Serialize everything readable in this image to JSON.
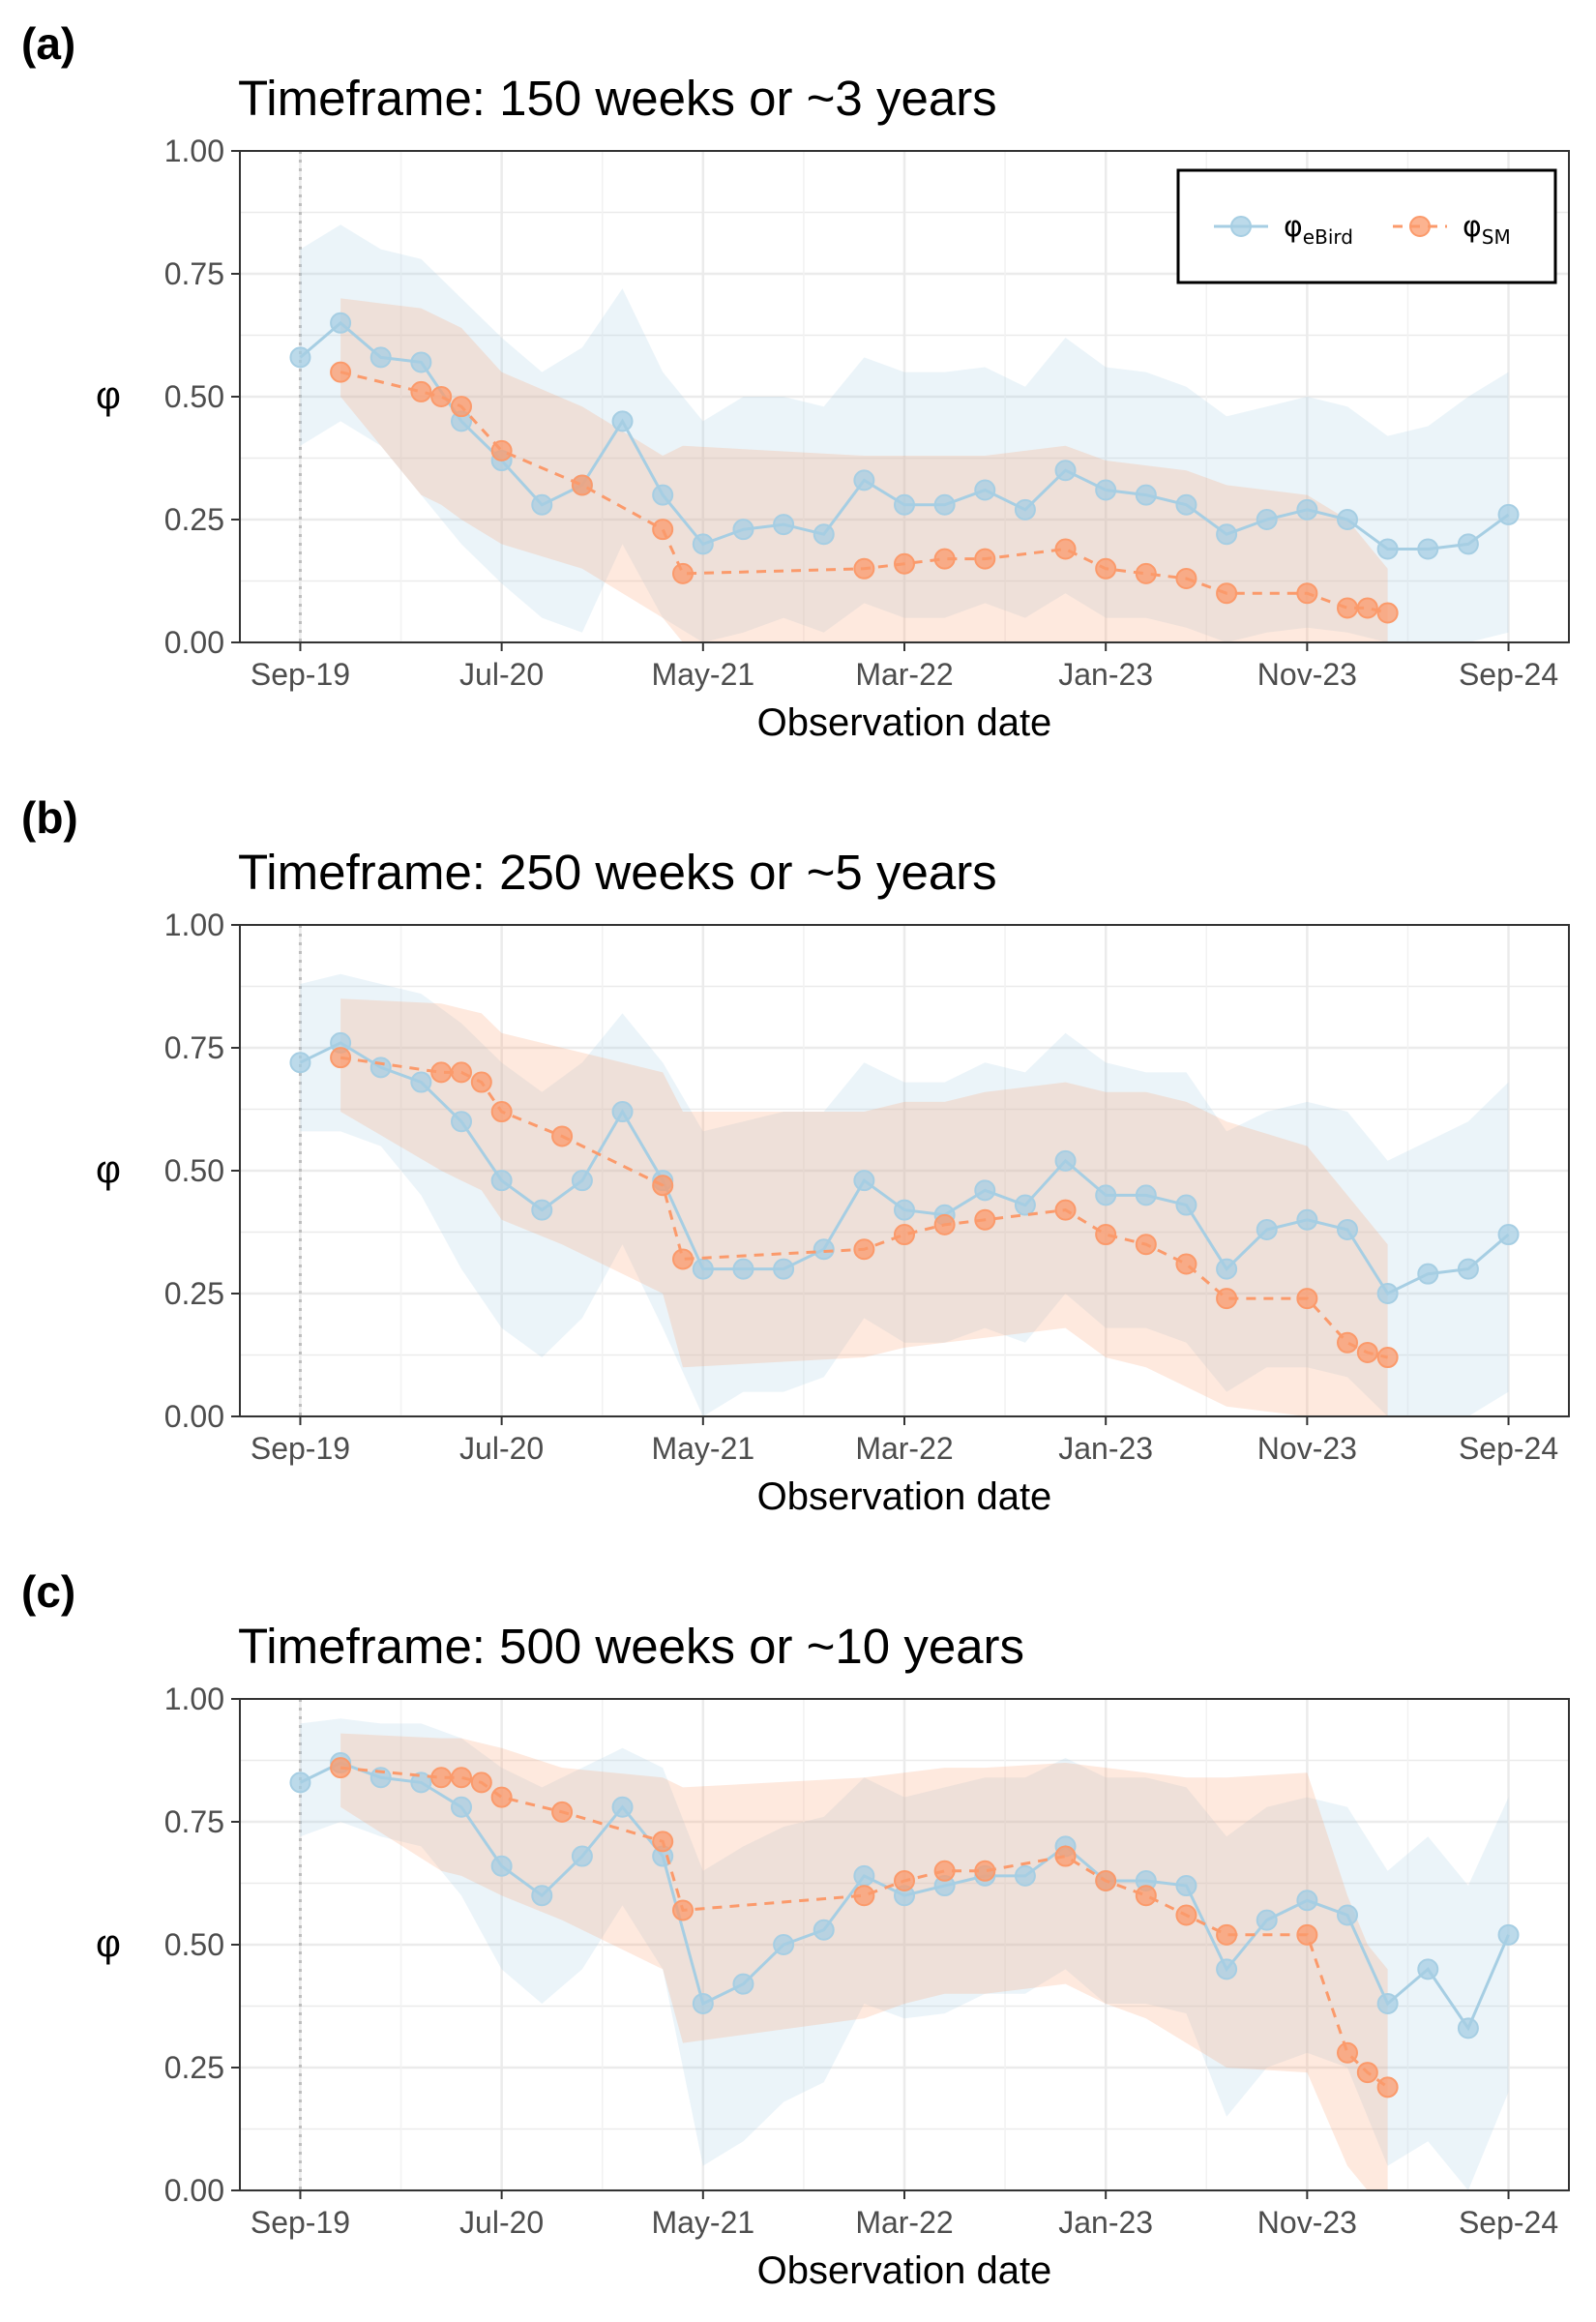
{
  "panels": [
    {
      "letter": "(a)",
      "title": "Timeframe: 150 weeks or ~3 years"
    },
    {
      "letter": "(b)",
      "title": "Timeframe: 250 weeks or ~5 years"
    },
    {
      "letter": "(c)",
      "title": "Timeframe: 500 weeks or ~10 years"
    }
  ],
  "legend": {
    "items": [
      {
        "symbol": "φ",
        "sub": "eBird",
        "color": "#a6cee3"
      },
      {
        "symbol": "φ",
        "sub": "SM",
        "color": "#fb9a6b"
      }
    ]
  },
  "chart_data": [
    {
      "type": "line",
      "title": "Timeframe: 150 weeks or ~3 years",
      "xlabel": "Observation date",
      "ylabel": "φ",
      "x_ticks": [
        "Sep-19",
        "Jul-20",
        "May-21",
        "Mar-22",
        "Jan-23",
        "Nov-23",
        "Sep-24"
      ],
      "ylim": [
        0,
        1
      ],
      "y_ticks": [
        "0.00",
        "0.25",
        "0.50",
        "0.75",
        "1.00"
      ],
      "grid": true,
      "legend_position": "top-right",
      "series": [
        {
          "name": "φeBird",
          "color": "#a6cee3",
          "x": [
            "2019-09",
            "2019-11",
            "2020-01",
            "2020-03",
            "2020-05",
            "2020-07",
            "2020-09",
            "2020-11",
            "2021-01",
            "2021-03",
            "2021-05",
            "2021-07",
            "2021-09",
            "2021-11",
            "2022-01",
            "2022-03",
            "2022-05",
            "2022-07",
            "2022-09",
            "2022-11",
            "2023-01",
            "2023-03",
            "2023-05",
            "2023-07",
            "2023-09",
            "2023-11",
            "2024-01",
            "2024-03",
            "2024-05",
            "2024-07",
            "2024-09"
          ],
          "values": [
            0.58,
            0.65,
            0.58,
            0.57,
            0.45,
            0.37,
            0.28,
            0.32,
            0.45,
            0.3,
            0.2,
            0.23,
            0.24,
            0.22,
            0.33,
            0.28,
            0.28,
            0.31,
            0.27,
            0.35,
            0.31,
            0.3,
            0.28,
            0.22,
            0.25,
            0.27,
            0.25,
            0.19,
            0.19,
            0.2,
            0.26
          ],
          "band_lower": [
            0.4,
            0.45,
            0.4,
            0.3,
            0.2,
            0.12,
            0.05,
            0.02,
            0.2,
            0.05,
            0.0,
            0.02,
            0.05,
            0.02,
            0.08,
            0.05,
            0.05,
            0.08,
            0.05,
            0.1,
            0.05,
            0.05,
            0.03,
            0.0,
            0.02,
            0.03,
            0.02,
            0.0,
            0.0,
            0.0,
            0.02
          ],
          "band_upper": [
            0.8,
            0.85,
            0.8,
            0.78,
            0.7,
            0.62,
            0.55,
            0.6,
            0.72,
            0.55,
            0.45,
            0.5,
            0.5,
            0.48,
            0.58,
            0.55,
            0.55,
            0.56,
            0.52,
            0.62,
            0.56,
            0.55,
            0.52,
            0.46,
            0.48,
            0.5,
            0.48,
            0.42,
            0.44,
            0.5,
            0.55
          ]
        },
        {
          "name": "φSM",
          "color": "#fb9a6b",
          "x": [
            "2019-11",
            "2020-03",
            "2020-04",
            "2020-05",
            "2020-07",
            "2020-11",
            "2021-03",
            "2021-04",
            "2022-01",
            "2022-03",
            "2022-05",
            "2022-07",
            "2022-11",
            "2023-01",
            "2023-03",
            "2023-05",
            "2023-07",
            "2023-11",
            "2024-01",
            "2024-02",
            "2024-03"
          ],
          "values": [
            0.55,
            0.51,
            0.5,
            0.48,
            0.39,
            0.32,
            0.23,
            0.14,
            0.15,
            0.16,
            0.17,
            0.17,
            0.19,
            0.15,
            0.14,
            0.13,
            0.1,
            0.1,
            0.07,
            0.07,
            0.06
          ],
          "band_lower": [
            0.5,
            0.3,
            0.28,
            0.25,
            0.2,
            0.15,
            0.05,
            0.0,
            0.0,
            0.0,
            0.0,
            0.0,
            0.0,
            0.0,
            0.0,
            0.0,
            0.0,
            0.0,
            0.0,
            0.0,
            0.0
          ],
          "band_upper": [
            0.7,
            0.68,
            0.66,
            0.64,
            0.55,
            0.48,
            0.38,
            0.4,
            0.38,
            0.38,
            0.38,
            0.38,
            0.4,
            0.37,
            0.36,
            0.35,
            0.32,
            0.3,
            0.25,
            0.2,
            0.15
          ]
        }
      ]
    },
    {
      "type": "line",
      "title": "Timeframe: 250 weeks or ~5 years",
      "xlabel": "Observation date",
      "ylabel": "φ",
      "x_ticks": [
        "Sep-19",
        "Jul-20",
        "May-21",
        "Mar-22",
        "Jan-23",
        "Nov-23",
        "Sep-24"
      ],
      "ylim": [
        0,
        1
      ],
      "y_ticks": [
        "0.00",
        "0.25",
        "0.50",
        "0.75",
        "1.00"
      ],
      "grid": true,
      "legend_position": "none",
      "series": [
        {
          "name": "φeBird",
          "color": "#a6cee3",
          "x": [
            "2019-09",
            "2019-11",
            "2020-01",
            "2020-03",
            "2020-05",
            "2020-07",
            "2020-09",
            "2020-11",
            "2021-01",
            "2021-03",
            "2021-05",
            "2021-07",
            "2021-09",
            "2021-11",
            "2022-01",
            "2022-03",
            "2022-05",
            "2022-07",
            "2022-09",
            "2022-11",
            "2023-01",
            "2023-03",
            "2023-05",
            "2023-07",
            "2023-09",
            "2023-11",
            "2024-01",
            "2024-03",
            "2024-05",
            "2024-07",
            "2024-09"
          ],
          "values": [
            0.72,
            0.76,
            0.71,
            0.68,
            0.6,
            0.48,
            0.42,
            0.48,
            0.62,
            0.48,
            0.3,
            0.3,
            0.3,
            0.34,
            0.48,
            0.42,
            0.41,
            0.46,
            0.43,
            0.52,
            0.45,
            0.45,
            0.43,
            0.3,
            0.38,
            0.4,
            0.38,
            0.25,
            0.29,
            0.3,
            0.37
          ],
          "band_lower": [
            0.58,
            0.58,
            0.55,
            0.45,
            0.3,
            0.18,
            0.12,
            0.2,
            0.35,
            0.18,
            0.0,
            0.05,
            0.05,
            0.08,
            0.2,
            0.15,
            0.15,
            0.18,
            0.15,
            0.25,
            0.18,
            0.18,
            0.15,
            0.05,
            0.1,
            0.1,
            0.08,
            0.0,
            0.0,
            0.0,
            0.05
          ],
          "band_upper": [
            0.88,
            0.9,
            0.88,
            0.86,
            0.8,
            0.72,
            0.66,
            0.72,
            0.82,
            0.72,
            0.58,
            0.6,
            0.62,
            0.62,
            0.72,
            0.68,
            0.68,
            0.72,
            0.7,
            0.78,
            0.72,
            0.7,
            0.7,
            0.58,
            0.62,
            0.64,
            0.62,
            0.52,
            0.56,
            0.6,
            0.68
          ]
        },
        {
          "name": "φSM",
          "color": "#fb9a6b",
          "x": [
            "2019-11",
            "2020-04",
            "2020-05",
            "2020-06",
            "2020-07",
            "2020-10",
            "2021-03",
            "2021-04",
            "2022-01",
            "2022-03",
            "2022-05",
            "2022-07",
            "2022-11",
            "2023-01",
            "2023-03",
            "2023-05",
            "2023-07",
            "2023-11",
            "2024-01",
            "2024-02",
            "2024-03"
          ],
          "values": [
            0.73,
            0.7,
            0.7,
            0.68,
            0.62,
            0.57,
            0.47,
            0.32,
            0.34,
            0.37,
            0.39,
            0.4,
            0.42,
            0.37,
            0.35,
            0.31,
            0.24,
            0.24,
            0.15,
            0.13,
            0.12
          ],
          "band_lower": [
            0.62,
            0.5,
            0.48,
            0.46,
            0.4,
            0.35,
            0.25,
            0.1,
            0.12,
            0.14,
            0.15,
            0.16,
            0.18,
            0.12,
            0.1,
            0.06,
            0.02,
            0.0,
            0.0,
            0.0,
            0.0
          ],
          "band_upper": [
            0.85,
            0.84,
            0.83,
            0.82,
            0.78,
            0.75,
            0.7,
            0.62,
            0.62,
            0.64,
            0.64,
            0.66,
            0.68,
            0.66,
            0.66,
            0.64,
            0.6,
            0.55,
            0.45,
            0.4,
            0.35
          ]
        }
      ]
    },
    {
      "type": "line",
      "title": "Timeframe: 500 weeks or ~10 years",
      "xlabel": "Observation date",
      "ylabel": "φ",
      "x_ticks": [
        "Sep-19",
        "Jul-20",
        "May-21",
        "Mar-22",
        "Jan-23",
        "Nov-23",
        "Sep-24"
      ],
      "ylim": [
        0,
        1
      ],
      "y_ticks": [
        "0.00",
        "0.25",
        "0.50",
        "0.75",
        "1.00"
      ],
      "grid": true,
      "legend_position": "none",
      "series": [
        {
          "name": "φeBird",
          "color": "#a6cee3",
          "x": [
            "2019-09",
            "2019-11",
            "2020-01",
            "2020-03",
            "2020-05",
            "2020-07",
            "2020-09",
            "2020-11",
            "2021-01",
            "2021-03",
            "2021-05",
            "2021-07",
            "2021-09",
            "2021-11",
            "2022-01",
            "2022-03",
            "2022-05",
            "2022-07",
            "2022-09",
            "2022-11",
            "2023-01",
            "2023-03",
            "2023-05",
            "2023-07",
            "2023-09",
            "2023-11",
            "2024-01",
            "2024-03",
            "2024-05",
            "2024-07",
            "2024-09"
          ],
          "values": [
            0.83,
            0.87,
            0.84,
            0.83,
            0.78,
            0.66,
            0.6,
            0.68,
            0.78,
            0.68,
            0.38,
            0.42,
            0.5,
            0.53,
            0.64,
            0.6,
            0.62,
            0.64,
            0.64,
            0.7,
            0.63,
            0.63,
            0.62,
            0.45,
            0.55,
            0.59,
            0.56,
            0.38,
            0.45,
            0.33,
            0.52
          ],
          "band_lower": [
            0.72,
            0.75,
            0.72,
            0.7,
            0.6,
            0.45,
            0.38,
            0.45,
            0.58,
            0.45,
            0.05,
            0.1,
            0.18,
            0.22,
            0.38,
            0.35,
            0.36,
            0.4,
            0.4,
            0.45,
            0.38,
            0.38,
            0.36,
            0.15,
            0.25,
            0.28,
            0.25,
            0.05,
            0.1,
            0.0,
            0.2
          ],
          "band_upper": [
            0.95,
            0.96,
            0.95,
            0.95,
            0.92,
            0.86,
            0.82,
            0.86,
            0.9,
            0.86,
            0.65,
            0.7,
            0.74,
            0.76,
            0.84,
            0.8,
            0.82,
            0.84,
            0.84,
            0.88,
            0.84,
            0.84,
            0.82,
            0.72,
            0.78,
            0.8,
            0.78,
            0.65,
            0.72,
            0.62,
            0.8
          ]
        },
        {
          "name": "φSM",
          "color": "#fb9a6b",
          "x": [
            "2019-11",
            "2020-04",
            "2020-05",
            "2020-06",
            "2020-07",
            "2020-10",
            "2021-03",
            "2021-04",
            "2022-01",
            "2022-03",
            "2022-05",
            "2022-07",
            "2022-11",
            "2023-01",
            "2023-03",
            "2023-05",
            "2023-07",
            "2023-11",
            "2024-01",
            "2024-02",
            "2024-03"
          ],
          "values": [
            0.86,
            0.84,
            0.84,
            0.83,
            0.8,
            0.77,
            0.71,
            0.57,
            0.6,
            0.63,
            0.65,
            0.65,
            0.68,
            0.63,
            0.6,
            0.56,
            0.52,
            0.52,
            0.28,
            0.24,
            0.21
          ],
          "band_lower": [
            0.78,
            0.65,
            0.64,
            0.62,
            0.6,
            0.55,
            0.45,
            0.3,
            0.35,
            0.38,
            0.4,
            0.4,
            0.42,
            0.38,
            0.35,
            0.3,
            0.25,
            0.24,
            0.05,
            0.0,
            0.0
          ],
          "band_upper": [
            0.93,
            0.92,
            0.92,
            0.91,
            0.9,
            0.86,
            0.84,
            0.82,
            0.84,
            0.85,
            0.86,
            0.86,
            0.87,
            0.86,
            0.85,
            0.84,
            0.84,
            0.85,
            0.6,
            0.5,
            0.45
          ]
        }
      ]
    }
  ]
}
